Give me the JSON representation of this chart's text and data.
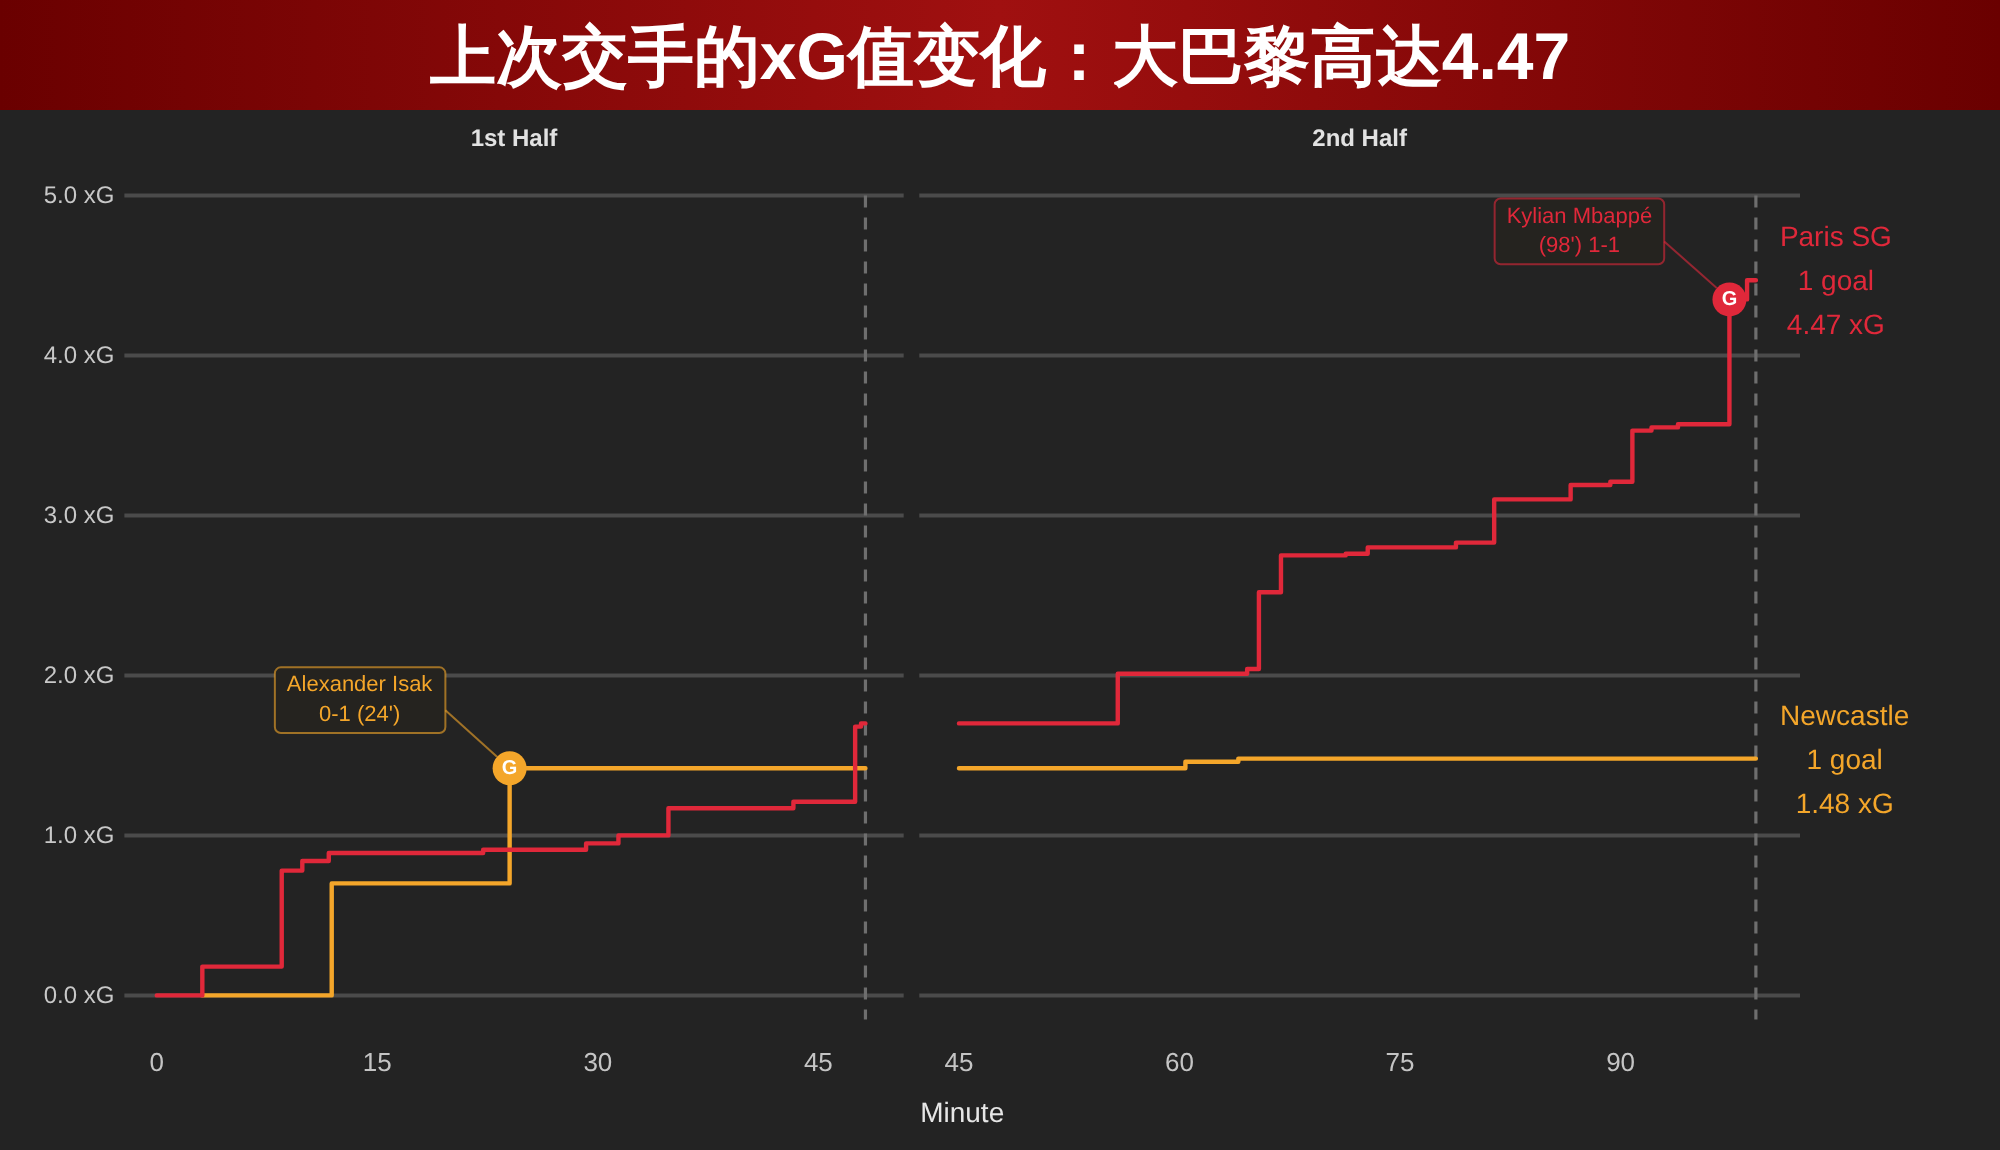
{
  "chart_data": [
    {
      "type": "step",
      "title": "上次交手的xG值变化：大巴黎高达4.47",
      "subtitle": "1st Half",
      "xlabel": "Minute",
      "xlim": [
        -2.2,
        50.8
      ],
      "xticks": [
        0,
        15,
        30,
        45
      ],
      "ylim": [
        0,
        5
      ],
      "yticks": [
        {
          "value": 0,
          "label": "0.0 xG"
        },
        {
          "value": 1,
          "label": "1.0 xG"
        },
        {
          "value": 2,
          "label": "2.0 xG"
        },
        {
          "value": 3,
          "label": "3.0 xG"
        },
        {
          "value": 4,
          "label": "4.0 xG"
        },
        {
          "value": 5,
          "label": "5.0 xG"
        }
      ],
      "grid": "y",
      "series": [
        {
          "color": "#f4a62a",
          "x": [
            3.1,
            11.9,
            24,
            48.2
          ],
          "values": [
            0,
            0.7,
            1.42,
            1.42
          ]
        },
        {
          "color": "#e0283a",
          "x": [
            0,
            3.1,
            8.5,
            9.9,
            11.7,
            22.2,
            29.2,
            31.4,
            34.8,
            43.3,
            47.5,
            47.9,
            48.2
          ],
          "values": [
            0,
            0.18,
            0.78,
            0.84,
            0.89,
            0.91,
            0.95,
            1.0,
            1.17,
            1.21,
            1.68,
            1.7,
            1.7
          ]
        },
        {
          "type": "scatter",
          "marker": "circle",
          "color": "#f4a62a",
          "x": [
            24
          ],
          "values": [
            1.42
          ]
        }
      ],
      "ref_lines": [
        {
          "axis": "x",
          "value": 48.2,
          "color": "#6e6e6e",
          "line_style": "dashed"
        }
      ],
      "annotations": [
        {
          "text": "G",
          "x": 24,
          "y": 1.42
        },
        {
          "text": "Alexander Isak\n0-1 (24')",
          "x": 24,
          "y": 1.42
        }
      ]
    },
    {
      "type": "step",
      "subtitle": "2nd Half",
      "xlim": [
        42.3,
        102.2
      ],
      "xticks": [
        45,
        60,
        75,
        90
      ],
      "ylim": [
        0,
        5
      ],
      "yticks": [
        0,
        1,
        2,
        3,
        4,
        5
      ],
      "tick_labels": "x",
      "grid": "y",
      "series": [
        {
          "name": "Newcastle",
          "color": "#f4a62a",
          "x": [
            45,
            60.4,
            64,
            99.2
          ],
          "values": [
            1.42,
            1.46,
            1.48,
            1.48
          ],
          "value_labels": [
            null,
            null,
            null,
            "1.48 xG"
          ]
        },
        {
          "name": "Paris SG",
          "color": "#e0283a",
          "x": [
            45,
            55.8,
            64.6,
            65.4,
            66.9,
            71.3,
            72.8,
            78.8,
            81.4,
            86.6,
            89.3,
            90.8,
            92.1,
            93.9,
            97.4,
            98.6,
            99.2
          ],
          "values": [
            1.7,
            2.01,
            2.04,
            2.52,
            2.75,
            2.76,
            2.8,
            2.83,
            3.1,
            3.19,
            3.21,
            3.53,
            3.55,
            3.57,
            4.35,
            4.47,
            4.47
          ],
          "value_labels": [
            null,
            null,
            null,
            null,
            null,
            null,
            null,
            null,
            null,
            null,
            null,
            null,
            null,
            null,
            null,
            null,
            "4.47 xG"
          ]
        },
        {
          "type": "scatter",
          "marker": "circle",
          "color": "#e0283a",
          "x": [
            97.4
          ],
          "values": [
            4.35
          ]
        }
      ],
      "ref_lines": [
        {
          "axis": "x",
          "value": 99.2,
          "color": "#6e6e6e",
          "line_style": "dashed"
        }
      ],
      "annotations": [
        {
          "text": "G",
          "x": 97.4,
          "y": 4.35
        },
        {
          "text": "Kylian Mbappé\n(98') 1-1",
          "x": 97.4,
          "y": 4.35
        },
        {
          "text": "1 goal",
          "x": 99.2,
          "y": 4.47
        },
        {
          "text": "1 goal",
          "x": 99.2,
          "y": 1.48
        }
      ]
    }
  ]
}
